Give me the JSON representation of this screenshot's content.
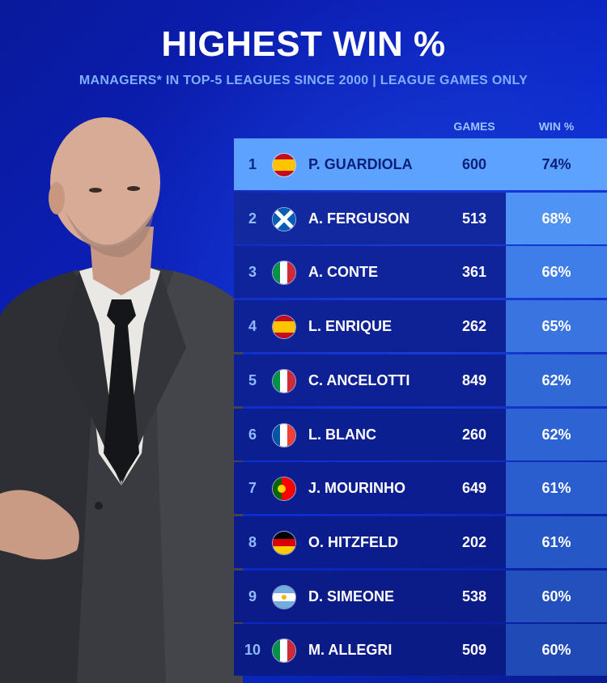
{
  "header": {
    "title": "HIGHEST WIN %",
    "subtitle": "MANAGERS* IN TOP-5 LEAGUES SINCE 2000 | LEAGUE GAMES ONLY"
  },
  "table": {
    "columns": {
      "games": "GAMES",
      "win": "WIN %"
    },
    "rows": [
      {
        "rank": "1",
        "country": "spain",
        "name": "P. GUARDIOLA",
        "games": "600",
        "win": "74%"
      },
      {
        "rank": "2",
        "country": "scotland",
        "name": "A. FERGUSON",
        "games": "513",
        "win": "68%"
      },
      {
        "rank": "3",
        "country": "italy",
        "name": "A. CONTE",
        "games": "361",
        "win": "66%"
      },
      {
        "rank": "4",
        "country": "spain",
        "name": "L. ENRIQUE",
        "games": "262",
        "win": "65%"
      },
      {
        "rank": "5",
        "country": "italy",
        "name": "C. ANCELOTTI",
        "games": "849",
        "win": "62%"
      },
      {
        "rank": "6",
        "country": "france",
        "name": "L. BLANC",
        "games": "260",
        "win": "62%"
      },
      {
        "rank": "7",
        "country": "portugal",
        "name": "J. MOURINHO",
        "games": "649",
        "win": "61%"
      },
      {
        "rank": "8",
        "country": "germany",
        "name": "O. HITZFELD",
        "games": "202",
        "win": "61%"
      },
      {
        "rank": "9",
        "country": "argentina",
        "name": "D. SIMEONE",
        "games": "538",
        "win": "60%"
      },
      {
        "rank": "10",
        "country": "italy",
        "name": "M. ALLEGRI",
        "games": "509",
        "win": "60%"
      }
    ]
  },
  "colors": {
    "background": "#0b1fb8",
    "highlight_row": "#5ea2ff",
    "row": "#0d2296",
    "subtitle": "#7fb0ff"
  }
}
